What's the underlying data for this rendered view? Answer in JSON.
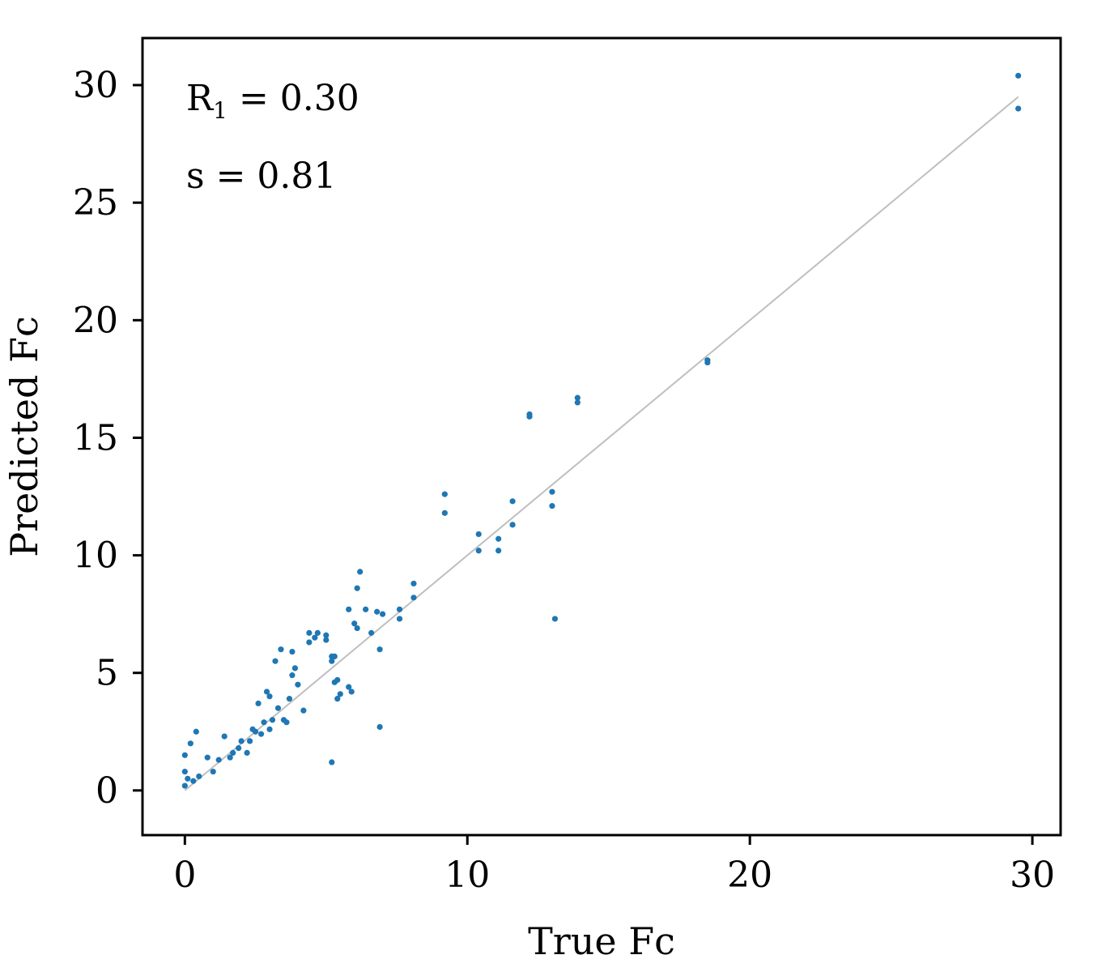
{
  "chart_data": {
    "type": "scatter",
    "title": "",
    "xlabel": "True Fc",
    "ylabel": "Predicted Fc",
    "xlim": [
      -1.5,
      31
    ],
    "ylim": [
      -1.9,
      32
    ],
    "xticks": [
      0,
      10,
      20,
      30
    ],
    "yticks": [
      0,
      5,
      10,
      15,
      20,
      25,
      30
    ],
    "grid": false,
    "legend": "none",
    "point_color": "#1f77b4",
    "line_color": "#bfbfbf",
    "annotations": [
      {
        "main": "R",
        "sub": "1",
        "rest": " = 0.30"
      },
      {
        "main": "s = 0.81",
        "sub": "",
        "rest": ""
      }
    ],
    "reference_line": {
      "x": [
        0,
        29.5
      ],
      "y": [
        0,
        29.5
      ]
    },
    "series": [
      {
        "x": [
          29.5,
          29.5,
          18.5,
          18.5,
          13.9,
          13.9,
          12.2,
          12.2,
          13.0,
          13.0,
          13.1,
          11.6,
          11.6,
          11.1,
          11.1,
          10.4,
          10.4,
          9.2,
          9.2,
          8.1,
          8.1,
          7.6,
          7.6,
          7.0,
          6.9,
          6.8,
          6.6,
          6.4,
          6.2,
          6.1,
          6.0,
          6.1,
          5.8,
          5.8,
          5.9,
          5.2,
          5.5,
          5.4,
          5.3,
          5.4,
          5.3,
          5.2,
          5.0,
          5.0,
          4.7,
          4.6,
          4.4,
          4.4,
          3.8,
          3.8,
          3.9,
          4.0,
          3.4,
          3.2,
          3.0,
          2.9,
          2.6,
          6.9,
          5.2,
          4.2,
          3.7,
          3.5,
          3.6,
          3.3,
          3.1,
          3.0,
          2.8,
          2.7,
          2.5,
          2.4,
          2.3,
          2.2,
          2.0,
          1.9,
          1.7,
          1.6,
          1.4,
          1.2,
          1.0,
          0.8,
          0.5,
          0.3,
          0.1,
          0.0,
          0.0,
          0.0,
          0.2,
          0.4
        ],
        "y": [
          30.4,
          29.0,
          18.3,
          18.2,
          16.7,
          16.5,
          16.0,
          15.9,
          12.7,
          12.1,
          7.3,
          12.3,
          11.3,
          10.7,
          10.2,
          10.9,
          10.2,
          12.6,
          11.8,
          8.8,
          8.2,
          7.7,
          7.3,
          7.5,
          6.0,
          7.6,
          6.7,
          7.7,
          9.3,
          8.6,
          7.1,
          6.9,
          7.7,
          4.4,
          4.2,
          5.5,
          4.1,
          3.9,
          4.6,
          4.7,
          5.7,
          5.7,
          6.6,
          6.4,
          6.7,
          6.5,
          6.7,
          6.3,
          5.9,
          4.9,
          5.2,
          4.5,
          6.0,
          5.5,
          4.0,
          4.2,
          3.7,
          2.7,
          1.2,
          3.4,
          3.9,
          3.0,
          2.9,
          3.5,
          3.0,
          2.6,
          2.9,
          2.4,
          2.5,
          2.6,
          2.1,
          1.6,
          2.1,
          1.8,
          1.6,
          1.4,
          2.3,
          1.3,
          0.8,
          1.4,
          0.6,
          0.4,
          0.5,
          0.8,
          0.2,
          1.5,
          2.0,
          2.5
        ]
      }
    ]
  }
}
